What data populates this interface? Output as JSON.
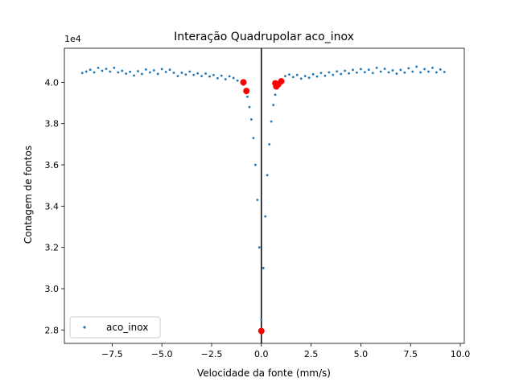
{
  "chart_data": {
    "type": "scatter",
    "title": "Interação Quadrupolar aco_inox",
    "xlabel": "Velocidade da fonte (mm/s)",
    "ylabel": "Contagem de fontos",
    "y_offset_label": "1e4",
    "xlim": [
      -9.9,
      10.2
    ],
    "ylim": [
      27350,
      41650
    ],
    "x_ticks": [
      -7.5,
      -5.0,
      -2.5,
      0.0,
      2.5,
      5.0,
      7.5,
      10.0
    ],
    "x_tick_labels": [
      "−7.5",
      "−5.0",
      "−2.5",
      "0.0",
      "2.5",
      "5.0",
      "7.5",
      "10.0"
    ],
    "y_ticks": [
      28000,
      30000,
      32000,
      34000,
      36000,
      38000,
      40000
    ],
    "y_tick_labels": [
      "2.8",
      "3.0",
      "3.2",
      "3.4",
      "3.6",
      "3.8",
      "4.0"
    ],
    "legend": {
      "position": "lower-left",
      "entries": [
        {
          "label": "aco_inox",
          "color": "#1f77b4"
        }
      ]
    },
    "series": [
      {
        "name": "aco_inox",
        "color": "#1f77b4",
        "marker": "point",
        "points": [
          [
            -9.0,
            40450
          ],
          [
            -8.8,
            40520
          ],
          [
            -8.6,
            40610
          ],
          [
            -8.4,
            40480
          ],
          [
            -8.2,
            40700
          ],
          [
            -8.0,
            40560
          ],
          [
            -7.8,
            40650
          ],
          [
            -7.6,
            40520
          ],
          [
            -7.4,
            40700
          ],
          [
            -7.2,
            40480
          ],
          [
            -7.0,
            40560
          ],
          [
            -6.8,
            40420
          ],
          [
            -6.6,
            40510
          ],
          [
            -6.4,
            40330
          ],
          [
            -6.2,
            40540
          ],
          [
            -6.0,
            40400
          ],
          [
            -5.8,
            40620
          ],
          [
            -5.6,
            40480
          ],
          [
            -5.4,
            40580
          ],
          [
            -5.2,
            40410
          ],
          [
            -5.0,
            40640
          ],
          [
            -4.8,
            40500
          ],
          [
            -4.6,
            40610
          ],
          [
            -4.4,
            40460
          ],
          [
            -4.2,
            40300
          ],
          [
            -4.0,
            40460
          ],
          [
            -3.8,
            40380
          ],
          [
            -3.6,
            40520
          ],
          [
            -3.4,
            40360
          ],
          [
            -3.2,
            40430
          ],
          [
            -3.0,
            40300
          ],
          [
            -2.8,
            40420
          ],
          [
            -2.6,
            40280
          ],
          [
            -2.4,
            40350
          ],
          [
            -2.2,
            40200
          ],
          [
            -2.0,
            40320
          ],
          [
            -1.8,
            40150
          ],
          [
            -1.6,
            40290
          ],
          [
            -1.4,
            40210
          ],
          [
            -1.2,
            40080
          ],
          [
            -1.0,
            40000
          ],
          [
            -0.9,
            39880
          ],
          [
            -0.8,
            39650
          ],
          [
            -0.7,
            39300
          ],
          [
            -0.6,
            38800
          ],
          [
            -0.5,
            38200
          ],
          [
            -0.4,
            37300
          ],
          [
            -0.3,
            36000
          ],
          [
            -0.2,
            34300
          ],
          [
            -0.1,
            32000
          ],
          [
            0.0,
            28500
          ],
          [
            0.1,
            31000
          ],
          [
            0.2,
            33500
          ],
          [
            0.3,
            35500
          ],
          [
            0.4,
            37000
          ],
          [
            0.5,
            38100
          ],
          [
            0.6,
            38900
          ],
          [
            0.7,
            39400
          ],
          [
            0.8,
            39700
          ],
          [
            1.0,
            40050
          ],
          [
            1.2,
            40300
          ],
          [
            1.4,
            40380
          ],
          [
            1.6,
            40250
          ],
          [
            1.8,
            40360
          ],
          [
            2.0,
            40180
          ],
          [
            2.2,
            40300
          ],
          [
            2.4,
            40220
          ],
          [
            2.6,
            40390
          ],
          [
            2.8,
            40280
          ],
          [
            3.0,
            40450
          ],
          [
            3.2,
            40320
          ],
          [
            3.4,
            40480
          ],
          [
            3.6,
            40360
          ],
          [
            3.8,
            40530
          ],
          [
            4.0,
            40400
          ],
          [
            4.2,
            40560
          ],
          [
            4.4,
            40430
          ],
          [
            4.6,
            40600
          ],
          [
            4.8,
            40470
          ],
          [
            5.0,
            40640
          ],
          [
            5.2,
            40490
          ],
          [
            5.4,
            40610
          ],
          [
            5.6,
            40450
          ],
          [
            5.8,
            40700
          ],
          [
            6.0,
            40520
          ],
          [
            6.2,
            40650
          ],
          [
            6.4,
            40480
          ],
          [
            6.6,
            40580
          ],
          [
            6.8,
            40420
          ],
          [
            7.0,
            40600
          ],
          [
            7.2,
            40470
          ],
          [
            7.4,
            40680
          ],
          [
            7.6,
            40520
          ],
          [
            7.8,
            40760
          ],
          [
            8.0,
            40480
          ],
          [
            8.2,
            40640
          ],
          [
            8.4,
            40520
          ],
          [
            8.6,
            40700
          ],
          [
            8.8,
            40480
          ],
          [
            9.0,
            40620
          ],
          [
            9.2,
            40500
          ]
        ]
      }
    ],
    "highlight_points": {
      "color": "#ff0000",
      "points": [
        [
          -0.9,
          40000
        ],
        [
          -0.75,
          39580
        ],
        [
          0.0,
          27950
        ],
        [
          0.7,
          39950
        ],
        [
          0.75,
          39800
        ],
        [
          0.85,
          39900
        ],
        [
          1.0,
          40050
        ]
      ]
    },
    "vertical_line": {
      "x": 0.0,
      "color": "#000000"
    }
  }
}
